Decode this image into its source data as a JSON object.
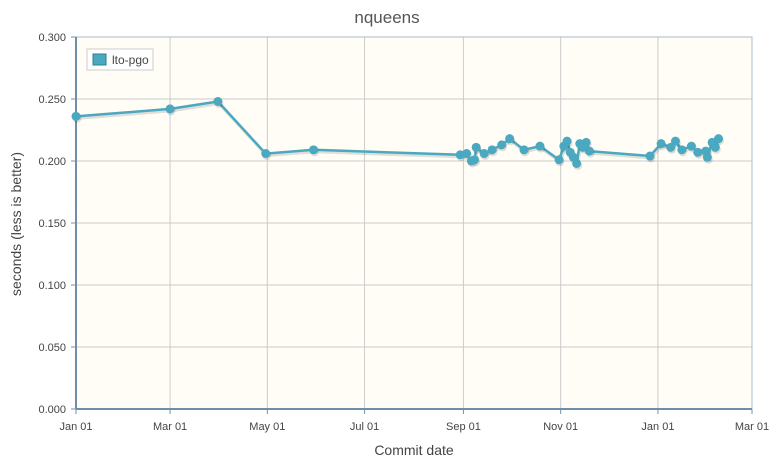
{
  "chart_data": {
    "type": "line",
    "title": "nqueens",
    "xlabel": "Commit date",
    "ylabel": "seconds (less is better)",
    "x_axis": "date",
    "xlim": [
      "2022-01-01",
      "2023-03-01"
    ],
    "ylim": [
      0,
      0.3
    ],
    "x_ticks": [
      "Jan 01",
      "Mar 01",
      "May 01",
      "Jul 01",
      "Sep 01",
      "Nov 01",
      "Jan 01",
      "Mar 01"
    ],
    "x_tick_dates": [
      "2022-01-01",
      "2022-03-01",
      "2022-05-01",
      "2022-07-01",
      "2022-09-01",
      "2022-11-01",
      "2023-01-01",
      "2023-03-01"
    ],
    "y_ticks": [
      "0.000",
      "0.050",
      "0.100",
      "0.150",
      "0.200",
      "0.250",
      "0.300"
    ],
    "grid": true,
    "legend_position": "top-left",
    "colors": {
      "series": "#4aa8c0",
      "plot_bg": "#fffdf5",
      "grid": "#cccccc",
      "axis": "#6f8fa8"
    },
    "series": [
      {
        "name": "lto-pgo",
        "points": [
          [
            "2022-01-01",
            0.236
          ],
          [
            "2022-03-01",
            0.242
          ],
          [
            "2022-03-31",
            0.248
          ],
          [
            "2022-04-30",
            0.206
          ],
          [
            "2022-05-30",
            0.209
          ],
          [
            "2022-08-30",
            0.205
          ],
          [
            "2022-09-03",
            0.206
          ],
          [
            "2022-09-06",
            0.2
          ],
          [
            "2022-09-08",
            0.201
          ],
          [
            "2022-09-09",
            0.211
          ],
          [
            "2022-09-14",
            0.206
          ],
          [
            "2022-09-19",
            0.209
          ],
          [
            "2022-09-25",
            0.213
          ],
          [
            "2022-09-30",
            0.218
          ],
          [
            "2022-10-09",
            0.209
          ],
          [
            "2022-10-19",
            0.212
          ],
          [
            "2022-10-31",
            0.201
          ],
          [
            "2022-11-03",
            0.212
          ],
          [
            "2022-11-05",
            0.216
          ],
          [
            "2022-11-07",
            0.207
          ],
          [
            "2022-11-09",
            0.203
          ],
          [
            "2022-11-11",
            0.198
          ],
          [
            "2022-11-13",
            0.214
          ],
          [
            "2022-11-15",
            0.211
          ],
          [
            "2022-11-17",
            0.215
          ],
          [
            "2022-11-19",
            0.208
          ],
          [
            "2022-12-27",
            0.204
          ],
          [
            "2023-01-03",
            0.214
          ],
          [
            "2023-01-09",
            0.211
          ],
          [
            "2023-01-12",
            0.216
          ],
          [
            "2023-01-16",
            0.209
          ],
          [
            "2023-01-22",
            0.212
          ],
          [
            "2023-01-26",
            0.207
          ],
          [
            "2023-01-31",
            0.208
          ],
          [
            "2023-02-01",
            0.203
          ],
          [
            "2023-02-04",
            0.215
          ],
          [
            "2023-02-06",
            0.211
          ],
          [
            "2023-02-08",
            0.218
          ]
        ]
      }
    ]
  }
}
